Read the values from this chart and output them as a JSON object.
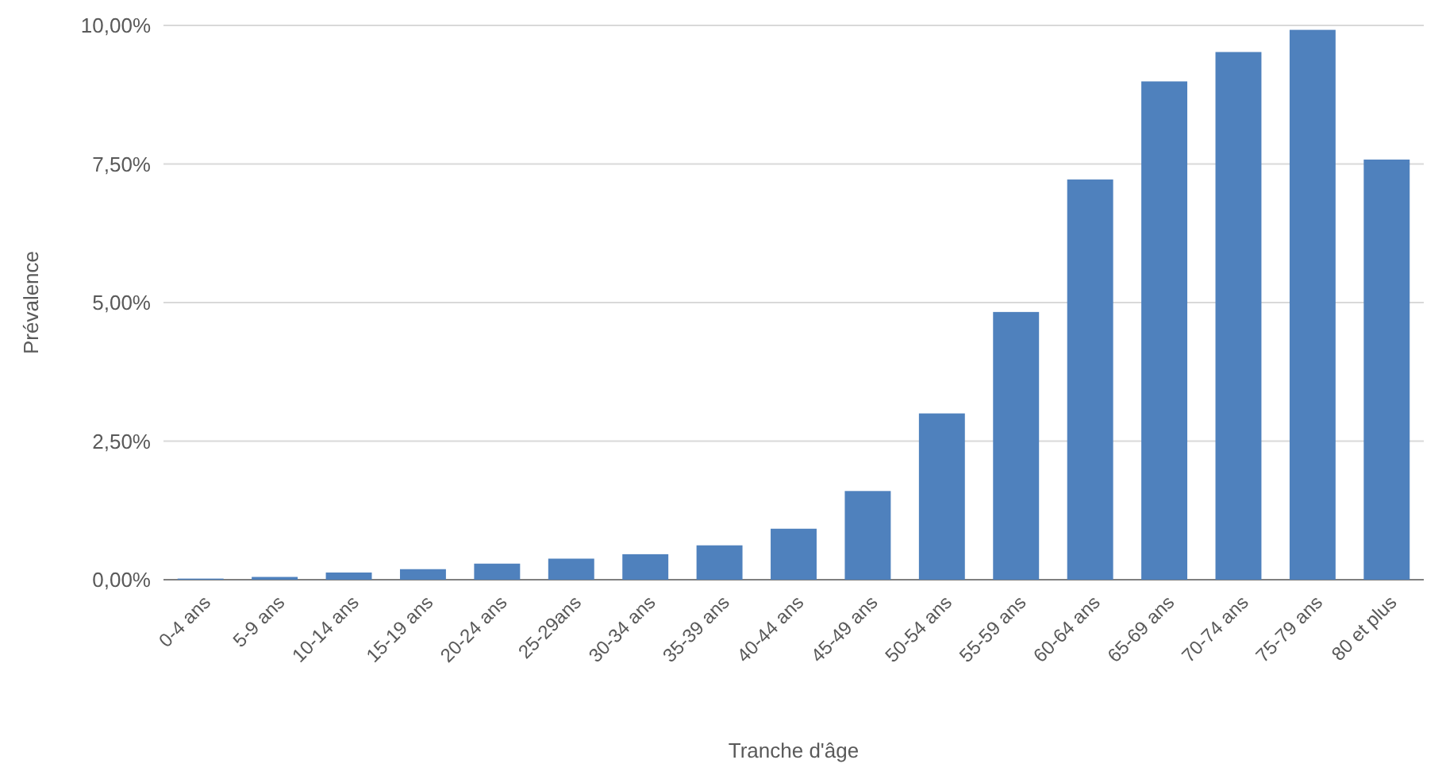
{
  "chart_data": {
    "type": "bar",
    "xlabel": "Tranche d'âge",
    "ylabel": "Prévalence",
    "categories": [
      "0-4 ans",
      "5-9 ans",
      "10-14 ans",
      "15-19 ans",
      "20-24 ans",
      "25-29ans",
      "30-34 ans",
      "35-39 ans",
      "40-44 ans",
      "45-49 ans",
      "50-54 ans",
      "55-59 ans",
      "60-64 ans",
      "65-69 ans",
      "70-74 ans",
      "75-79 ans",
      "80 et plus"
    ],
    "values": [
      0.02,
      0.05,
      0.13,
      0.19,
      0.29,
      0.38,
      0.46,
      0.62,
      0.92,
      1.6,
      3.0,
      4.83,
      7.22,
      8.99,
      9.52,
      9.92,
      7.58
    ],
    "color": "#4f81bd",
    "ylim": [
      0,
      10
    ],
    "yticks": [
      {
        "value": 0,
        "label": "0,00%"
      },
      {
        "value": 2.5,
        "label": "2,50%"
      },
      {
        "value": 5,
        "label": "5,00%"
      },
      {
        "value": 7.5,
        "label": "7,50%"
      },
      {
        "value": 10,
        "label": "10,00%"
      }
    ],
    "grid": "y"
  }
}
